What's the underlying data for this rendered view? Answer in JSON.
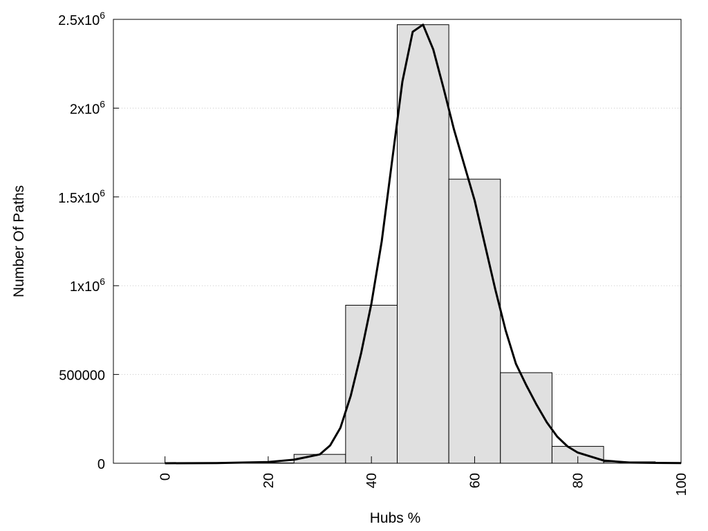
{
  "chart_data": {
    "type": "bar",
    "title": "",
    "xlabel": "Hubs %",
    "ylabel": "Number Of Paths",
    "xlim": [
      -10,
      100
    ],
    "ylim": [
      0,
      2500000
    ],
    "grid": "horizontal-dotted",
    "x_ticks": [
      0,
      20,
      40,
      60,
      80,
      100
    ],
    "x_tick_labels": [
      "0",
      "20",
      "40",
      "60",
      "80",
      "100"
    ],
    "y_ticks": [
      0,
      500000,
      1000000,
      1500000,
      2000000,
      2500000
    ],
    "y_tick_labels": [
      {
        "text": "0",
        "sup": ""
      },
      {
        "text": "500000",
        "sup": ""
      },
      {
        "text": "1x10",
        "sup": "6"
      },
      {
        "text": "1.5x10",
        "sup": "6"
      },
      {
        "text": "2x10",
        "sup": "6"
      },
      {
        "text": "2.5x10",
        "sup": "6"
      }
    ],
    "bar_width": 10,
    "bar_color": "#e0e0e0",
    "bars": [
      {
        "x": 0,
        "value": 0
      },
      {
        "x": 10,
        "value": 0
      },
      {
        "x": 20,
        "value": 2000
      },
      {
        "x": 30,
        "value": 50000
      },
      {
        "x": 40,
        "value": 890000
      },
      {
        "x": 50,
        "value": 2470000
      },
      {
        "x": 60,
        "value": 1600000
      },
      {
        "x": 70,
        "value": 510000
      },
      {
        "x": 80,
        "value": 95000
      },
      {
        "x": 90,
        "value": 8000
      }
    ],
    "curve": {
      "type": "line",
      "color": "#000000",
      "x": [
        0,
        10,
        20,
        25,
        30,
        32,
        34,
        36,
        38,
        40,
        42,
        44,
        46,
        48,
        50,
        52,
        54,
        56,
        58,
        60,
        62,
        64,
        66,
        68,
        70,
        72,
        74,
        76,
        78,
        80,
        85,
        90,
        95,
        100
      ],
      "y": [
        0,
        1000,
        7000,
        20000,
        50000,
        100000,
        200000,
        380000,
        620000,
        900000,
        1250000,
        1700000,
        2150000,
        2430000,
        2470000,
        2330000,
        2110000,
        1880000,
        1680000,
        1480000,
        1230000,
        980000,
        750000,
        560000,
        440000,
        330000,
        230000,
        150000,
        95000,
        60000,
        15000,
        4000,
        2000,
        1000
      ]
    }
  }
}
